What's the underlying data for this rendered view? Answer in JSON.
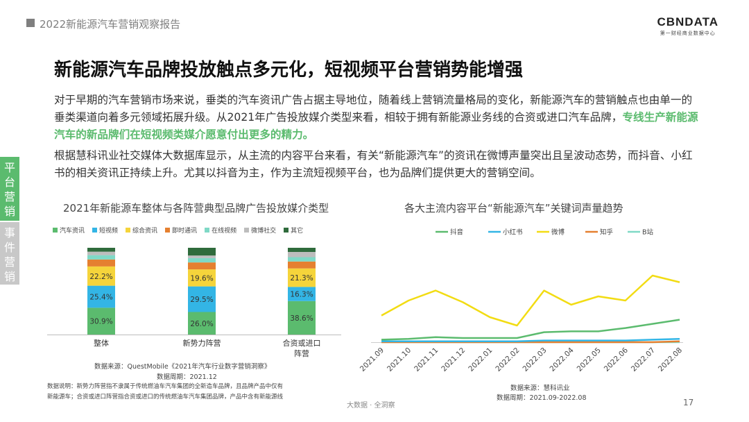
{
  "header": {
    "title": "2022新能源汽车营销观察报告"
  },
  "logo": {
    "main": "CBNDATA",
    "sub": "第一财经商业数据中心"
  },
  "main_title": "新能源汽车品牌投放触点多元化，短视频平台营销势能增强",
  "para1": {
    "text": "对于早期的汽车营销市场来说，垂类的汽车资讯广告占据主导地位，随着线上营销流量格局的变化，新能源汽车的营销触点也由单一的垂类渠道向着多元领域拓展升级。从2021年广告投放媒介类型来看，相较于拥有新能源业务线的合资或进口汽车品牌，",
    "highlight": "专线生产新能源汽车的新品牌们在短视频类媒介愿意付出更多的精力。"
  },
  "para2": {
    "text": "根据慧科讯业社交媒体大数据库显示，从主流的内容平台来看，有关“新能源汽车”的资讯在微博声量突出且呈波动态势，而抖音、小红书的相关资讯正持续上升。尤其以抖音为主，作为主流短视频平台，也为品牌们提供更大的营销空间。"
  },
  "side_tabs": {
    "tab1": "平台营销",
    "tab2": "事件营销"
  },
  "chart_data": [
    {
      "type": "bar",
      "stacked": true,
      "title": "2021年新能源车整体与各阵营典型品牌广告投放媒介类型",
      "categories": [
        "整体",
        "新势力阵营",
        "合资或进口\n阵营"
      ],
      "series": [
        {
          "name": "汽车资讯",
          "color": "#5bbb6e",
          "values": [
            30.9,
            26.0,
            38.6
          ]
        },
        {
          "name": "短视频",
          "color": "#33b5e5",
          "values": [
            25.4,
            29.5,
            16.3
          ]
        },
        {
          "name": "综合资讯",
          "color": "#f5d43b",
          "values": [
            22.2,
            19.6,
            21.3
          ]
        },
        {
          "name": "即时通讯",
          "color": "#e58030",
          "values": [
            8.0,
            8.0,
            8.0
          ]
        },
        {
          "name": "在线视频",
          "color": "#7fd9c6",
          "values": [
            5.0,
            5.0,
            5.0
          ]
        },
        {
          "name": "微博社交",
          "color": "#bdbdbd",
          "values": [
            4.0,
            3.0,
            6.0
          ]
        },
        {
          "name": "其它",
          "color": "#2f6b3c",
          "values": [
            4.5,
            8.9,
            4.8
          ]
        }
      ],
      "labels_shown": [
        [
          "30.9%",
          "26.0%",
          "38.6%"
        ],
        [
          "25.4%",
          "29.5%",
          "16.3%"
        ],
        [
          "22.2%",
          "19.6%",
          "21.3%"
        ]
      ],
      "ylim": [
        0,
        100
      ]
    },
    {
      "type": "line",
      "title": "各大主流内容平台“新能源汽车”关键词声量趋势",
      "x": [
        "2021.09",
        "2021.10",
        "2021.11",
        "2021.12",
        "2022.01",
        "2022.02",
        "2022.03",
        "2022.04",
        "2022.05",
        "2022.06",
        "2022.07",
        "2022.08"
      ],
      "series": [
        {
          "name": "抖音",
          "color": "#5bbb6e",
          "values": [
            3,
            4,
            6,
            5,
            5,
            5,
            12,
            13,
            13,
            17,
            22,
            27
          ]
        },
        {
          "name": "小红书",
          "color": "#33b5e5",
          "values": [
            1,
            1,
            1,
            1,
            1,
            1,
            2,
            2,
            2,
            2,
            3,
            4
          ]
        },
        {
          "name": "微博",
          "color": "#f2dc13",
          "values": [
            32,
            50,
            62,
            48,
            30,
            20,
            62,
            45,
            55,
            50,
            80,
            72
          ]
        },
        {
          "name": "知乎",
          "color": "#e58030",
          "values": [
            0,
            0,
            0,
            0,
            0,
            0,
            0,
            0,
            0,
            0,
            0,
            1
          ]
        },
        {
          "name": "B站",
          "color": "#7fd9c6",
          "values": [
            0,
            0,
            0,
            0,
            0,
            0,
            0,
            0,
            0,
            0,
            0,
            0
          ]
        }
      ],
      "ylim": [
        0,
        100
      ]
    }
  ],
  "source1": {
    "line1": "数据来源：QuestMobile《2021年汽车行业数字营销洞察》",
    "line2": "数据周期：2021.12"
  },
  "note": {
    "line1": "数据说明：新势力阵营指不隶属于传统燃油车汽车集团的全新造车品牌，且品牌产品中仅有",
    "line2": "新能源车；合资或进口阵营指合资或进口的传统燃油车汽车集团品牌，产品中含有新能源线"
  },
  "source2": {
    "line1": "数据来源：慧科讯业",
    "line2": "数据周期：2021.09-2022.08"
  },
  "footer": "大数据 · 全洞察",
  "page_number": "17"
}
